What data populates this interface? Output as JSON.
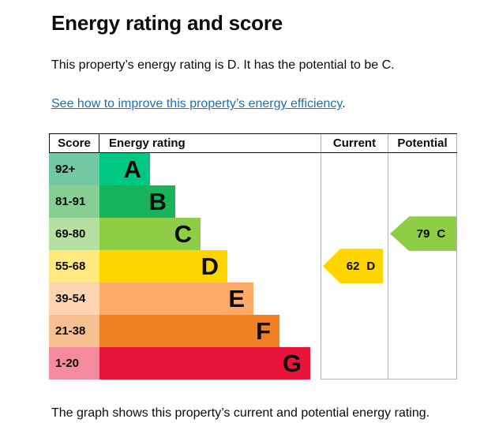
{
  "page": {
    "title": "Energy rating and score",
    "summary": "This property’s energy rating is D. It has the potential to be C.",
    "link_text": "See how to improve this property’s energy efficiency",
    "link_suffix": ".",
    "caption": "The graph shows this property’s current and potential energy rating."
  },
  "chart": {
    "headers": {
      "score": "Score",
      "rating": "Energy rating",
      "current": "Current",
      "potential": "Potential"
    },
    "bands": [
      {
        "score": "92+",
        "letter": "A",
        "color": "#00c781",
        "score_color": "#72c8a2"
      },
      {
        "score": "81-91",
        "letter": "B",
        "color": "#19b459",
        "score_color": "#87ce93"
      },
      {
        "score": "69-80",
        "letter": "C",
        "color": "#8dce46",
        "score_color": "#b6e0a1"
      },
      {
        "score": "55-68",
        "letter": "D",
        "color": "#ffd500",
        "score_color": "#ffea80"
      },
      {
        "score": "39-54",
        "letter": "E",
        "color": "#fcaa65",
        "score_color": "#fdd5b2"
      },
      {
        "score": "21-38",
        "letter": "F",
        "color": "#ef8023",
        "score_color": "#f7c091"
      },
      {
        "score": "1-20",
        "letter": "G",
        "color": "#e9153b",
        "score_color": "#f48a9d"
      }
    ],
    "current": {
      "value": "62",
      "band": "D",
      "color": "#ffd500"
    },
    "potential": {
      "value": "79",
      "band": "C",
      "color": "#8dce46"
    }
  },
  "chart_data": {
    "type": "bar",
    "title": "Energy rating and score",
    "categories": [
      "A",
      "B",
      "C",
      "D",
      "E",
      "F",
      "G"
    ],
    "score_ranges": [
      "92+",
      "81-91",
      "69-80",
      "55-68",
      "39-54",
      "21-38",
      "1-20"
    ],
    "band_colors": [
      "#00c781",
      "#19b459",
      "#8dce46",
      "#ffd500",
      "#fcaa65",
      "#ef8023",
      "#e9153b"
    ],
    "columns": [
      "Score",
      "Energy rating",
      "Current",
      "Potential"
    ],
    "current_rating": {
      "score": 62,
      "band": "D"
    },
    "potential_rating": {
      "score": 79,
      "band": "C"
    },
    "legend_position": "none",
    "grid": false
  },
  "colors": {
    "text": "#0b0c0c",
    "link": "#1d70b8",
    "grid_line": "#b1b4b6"
  }
}
